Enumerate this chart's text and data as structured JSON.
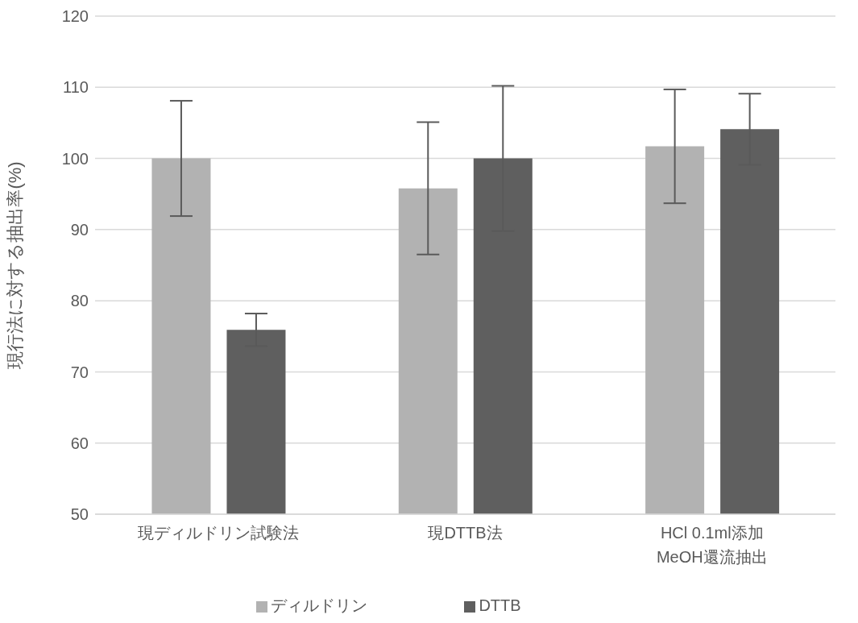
{
  "chart_data": {
    "type": "bar",
    "ylabel": "現行法に対する抽出率(%)",
    "categories": [
      "現ディルドリン試験法",
      "現DTTB法",
      "HCl 0.1ml添加\nMeOH還流抽出"
    ],
    "series": [
      {
        "name": "ディルドリン",
        "color": "#b2b2b2",
        "values": [
          100,
          95.8,
          101.7
        ],
        "errors": [
          8.1,
          9.3,
          8.0
        ]
      },
      {
        "name": "DTTB",
        "color": "#5f5f5f",
        "values": [
          75.9,
          100,
          104.1
        ],
        "errors": [
          2.3,
          10.2,
          5.0
        ]
      }
    ],
    "ylim": [
      50,
      120
    ],
    "yticks": [
      50,
      60,
      70,
      80,
      90,
      100,
      110,
      120
    ],
    "grid": "y",
    "legend": "bottom"
  }
}
